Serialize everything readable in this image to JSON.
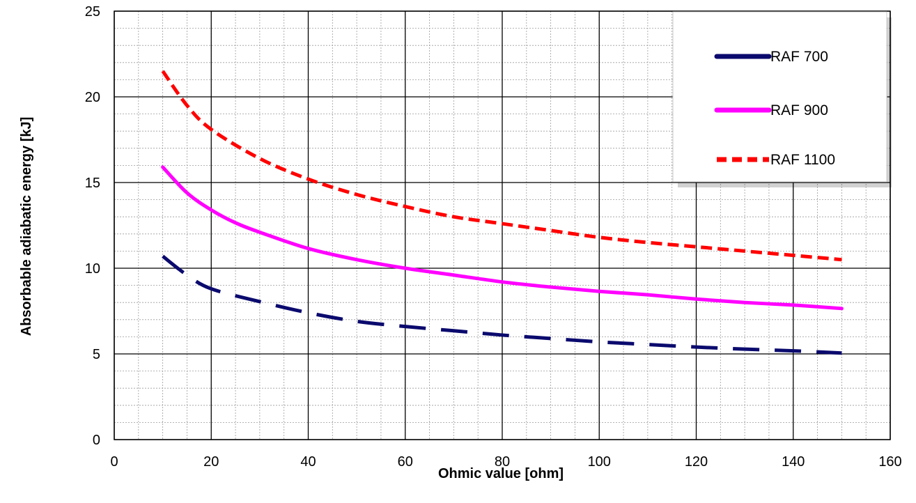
{
  "chart_data": {
    "type": "line",
    "title": "",
    "xlabel": "Ohmic value [ohm]",
    "ylabel": "Absorbable adiabatic energy [kJ]",
    "xlim": [
      0,
      160
    ],
    "ylim": [
      0,
      25
    ],
    "x_ticks": [
      0,
      20,
      40,
      60,
      80,
      100,
      120,
      140,
      160
    ],
    "y_ticks": [
      0,
      5,
      10,
      15,
      20,
      25
    ],
    "grid": true,
    "legend_position": "top-right",
    "series": [
      {
        "name": "RAF 700",
        "color": "#0a0a6e",
        "style": "long-dash",
        "points": [
          [
            10,
            10.7
          ],
          [
            15,
            9.6
          ],
          [
            20,
            8.8
          ],
          [
            30,
            8.05
          ],
          [
            40,
            7.4
          ],
          [
            50,
            6.9
          ],
          [
            60,
            6.6
          ],
          [
            70,
            6.35
          ],
          [
            80,
            6.1
          ],
          [
            90,
            5.9
          ],
          [
            100,
            5.7
          ],
          [
            110,
            5.55
          ],
          [
            120,
            5.4
          ],
          [
            130,
            5.28
          ],
          [
            140,
            5.18
          ],
          [
            150,
            5.05
          ]
        ]
      },
      {
        "name": "RAF 900",
        "color": "#ff00ff",
        "style": "solid",
        "points": [
          [
            10,
            15.9
          ],
          [
            15,
            14.4
          ],
          [
            20,
            13.4
          ],
          [
            25,
            12.65
          ],
          [
            30,
            12.1
          ],
          [
            40,
            11.15
          ],
          [
            50,
            10.5
          ],
          [
            60,
            10.0
          ],
          [
            70,
            9.6
          ],
          [
            80,
            9.2
          ],
          [
            90,
            8.9
          ],
          [
            100,
            8.65
          ],
          [
            110,
            8.45
          ],
          [
            120,
            8.2
          ],
          [
            130,
            8.0
          ],
          [
            140,
            7.85
          ],
          [
            150,
            7.65
          ]
        ]
      },
      {
        "name": "RAF 1100",
        "color": "#ff0000",
        "style": "short-dash",
        "points": [
          [
            10,
            21.5
          ],
          [
            15,
            19.5
          ],
          [
            20,
            18.1
          ],
          [
            30,
            16.4
          ],
          [
            40,
            15.2
          ],
          [
            50,
            14.3
          ],
          [
            60,
            13.6
          ],
          [
            70,
            13.0
          ],
          [
            80,
            12.6
          ],
          [
            90,
            12.2
          ],
          [
            100,
            11.8
          ],
          [
            110,
            11.5
          ],
          [
            120,
            11.25
          ],
          [
            130,
            11.0
          ],
          [
            140,
            10.75
          ],
          [
            150,
            10.5
          ]
        ]
      }
    ]
  }
}
